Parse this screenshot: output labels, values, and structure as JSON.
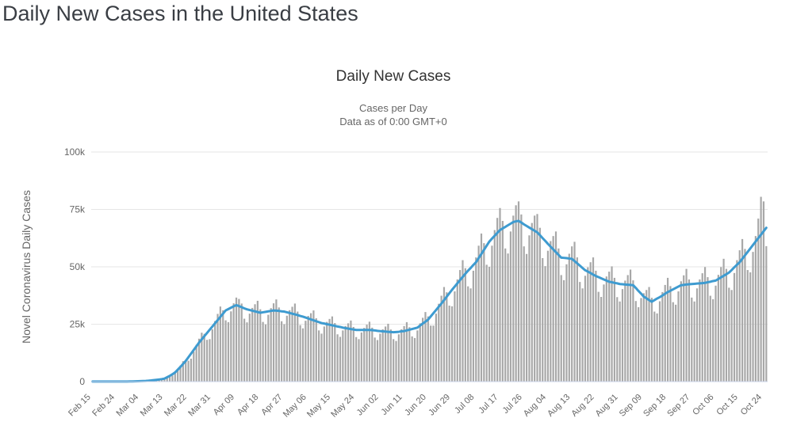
{
  "page": {
    "title": "Daily New Cases in the United States"
  },
  "chart": {
    "title": "Daily New Cases",
    "subtitle1": "Cases per Day",
    "subtitle2": "Data as of 0:00 GMT+0",
    "y_axis_title": "Novel Coronavirus Daily Cases",
    "colors": {
      "bar": "#a8a8a8",
      "line": "#3e9bd0",
      "grid": "#e6e6e6",
      "axis": "#ccd6eb",
      "tick_text": "#666666",
      "title_text": "#333333"
    }
  },
  "chart_data": {
    "type": "bar",
    "title": "Daily New Cases",
    "subtitle": [
      "Cases per Day",
      "Data as of 0:00 GMT+0"
    ],
    "ylabel": "Novel Coronavirus Daily Cases",
    "xlabel": "",
    "legend": "none",
    "grid": true,
    "units": "thousands of cases per day",
    "ylim_k": [
      0,
      100
    ],
    "y_ticks_k": [
      0,
      25,
      50,
      75,
      100
    ],
    "y_tick_labels": [
      "0",
      "25k",
      "50k",
      "75k",
      "100k"
    ],
    "x_tick_interval": 9,
    "n_points": 254,
    "x_tick_labels": [
      "Feb 15",
      "Feb 24",
      "Mar 04",
      "Mar 13",
      "Mar 22",
      "Mar 31",
      "Apr 09",
      "Apr 18",
      "Apr 27",
      "May 06",
      "May 15",
      "May 24",
      "Jun 02",
      "Jun 11",
      "Jun 20",
      "Jun 29",
      "Jul 08",
      "Jul 17",
      "Jul 26",
      "Aug 04",
      "Aug 13",
      "Aug 22",
      "Aug 31",
      "Sep 09",
      "Sep 18",
      "Sep 27",
      "Oct 06",
      "Oct 15",
      "Oct 24"
    ],
    "series": [
      {
        "name": "daily-new-cases-bars",
        "type": "bar",
        "values_k": [
          0,
          0,
          0,
          0,
          0,
          0,
          0,
          0.1,
          0,
          0,
          0,
          0,
          0.1,
          0.1,
          0.1,
          0.1,
          0.1,
          0.2,
          0.2,
          0.3,
          0.3,
          0.4,
          0.5,
          0.6,
          0.8,
          0.9,
          1.1,
          1.4,
          2.0,
          2.2,
          2.6,
          3.8,
          5.4,
          7.0,
          8.9,
          9.5,
          9.1,
          10.0,
          13.1,
          16.0,
          18.7,
          21.3,
          20.8,
          18.2,
          18.5,
          22.8,
          26.4,
          29.5,
          32.7,
          31.1,
          26.7,
          25.9,
          30.6,
          34.1,
          36.6,
          36.0,
          34.0,
          27.4,
          25.8,
          29.6,
          32.1,
          33.7,
          35.2,
          31.5,
          26.0,
          24.9,
          29.1,
          32.0,
          34.1,
          35.8,
          32.3,
          26.3,
          25.0,
          28.7,
          31.1,
          32.6,
          34.0,
          30.5,
          24.6,
          23.2,
          26.5,
          28.6,
          29.8,
          31.0,
          27.6,
          22.3,
          20.9,
          24.0,
          26.0,
          27.3,
          28.4,
          25.5,
          20.6,
          19.5,
          22.3,
          24.2,
          25.4,
          26.6,
          23.8,
          19.4,
          18.5,
          21.4,
          23.4,
          24.8,
          26.1,
          23.5,
          19.2,
          18.1,
          20.9,
          22.8,
          24.0,
          25.2,
          22.7,
          18.5,
          17.7,
          20.6,
          22.8,
          24.2,
          25.9,
          23.7,
          19.7,
          19.0,
          22.3,
          25.4,
          27.8,
          30.3,
          28.4,
          24.4,
          24.4,
          29.6,
          33.9,
          37.4,
          41.2,
          38.9,
          33.1,
          32.8,
          39.3,
          44.5,
          48.6,
          52.9,
          49.4,
          41.5,
          40.6,
          48.3,
          54.1,
          59.2,
          64.5,
          60.3,
          50.9,
          50.0,
          59.2,
          66.0,
          71.3,
          75.6,
          70.0,
          58.0,
          55.8,
          65.4,
          72.3,
          76.8,
          78.5,
          72.8,
          58.9,
          55.6,
          63.7,
          69.1,
          72.3,
          73.0,
          67.0,
          53.8,
          50.3,
          57.0,
          61.2,
          63.4,
          65.4,
          58.0,
          46.4,
          44.2,
          51.1,
          55.7,
          58.9,
          60.9,
          54.1,
          43.4,
          40.6,
          46.1,
          49.8,
          52.0,
          54.1,
          48.3,
          39.1,
          36.9,
          42.3,
          45.8,
          47.9,
          50.2,
          45.2,
          36.8,
          34.9,
          40.3,
          44.0,
          46.4,
          48.8,
          44.1,
          35.1,
          32.4,
          36.4,
          38.5,
          39.9,
          41.2,
          36.5,
          30.5,
          29.7,
          35.0,
          39.0,
          42.1,
          45.2,
          41.6,
          34.6,
          33.5,
          39.3,
          43.7,
          46.3,
          49.1,
          44.5,
          36.6,
          34.9,
          40.6,
          44.5,
          47.2,
          49.9,
          45.5,
          37.4,
          35.9,
          41.8,
          46.5,
          49.9,
          53.5,
          49.1,
          40.9,
          39.9,
          47.3,
          52.9,
          57.2,
          62.1,
          57.8,
          48.6,
          47.6,
          56.5,
          63.4,
          71.0,
          80.5,
          78.5,
          59.0
        ]
      },
      {
        "name": "smoothed-trend-line",
        "type": "line",
        "values_k": [
          0.03,
          0.03,
          0.03,
          0.03,
          0.03,
          0.03,
          0.03,
          0.03,
          0.03,
          0.03,
          0.03,
          0.04,
          0.05,
          0.06,
          0.07,
          0.1,
          0.12,
          0.15,
          0.2,
          0.25,
          0.3,
          0.4,
          0.5,
          0.63,
          0.77,
          0.93,
          1.1,
          1.3,
          1.9,
          2.5,
          3.2,
          4.0,
          5.2,
          6.4,
          7.7,
          9.0,
          10.6,
          12.2,
          13.8,
          15.4,
          17.0,
          18.4,
          19.8,
          21.2,
          22.6,
          24.0,
          25.4,
          26.8,
          28.2,
          29.6,
          31.0,
          31.6,
          32.2,
          32.8,
          33.3,
          32.9,
          32.4,
          31.9,
          31.5,
          31.2,
          30.9,
          30.6,
          30.3,
          30.0,
          30.2,
          30.4,
          30.6,
          30.8,
          31.0,
          30.9,
          30.8,
          30.6,
          30.5,
          30.2,
          29.9,
          29.6,
          29.3,
          29.0,
          28.6,
          28.3,
          27.9,
          27.5,
          27.1,
          26.7,
          26.3,
          25.9,
          25.5,
          25.3,
          25.0,
          24.8,
          24.5,
          24.3,
          24.0,
          23.8,
          23.5,
          23.3,
          23.1,
          22.9,
          22.7,
          22.5,
          22.5,
          22.5,
          22.5,
          22.5,
          22.5,
          22.4,
          22.3,
          22.1,
          22.0,
          21.9,
          21.8,
          21.7,
          21.6,
          21.5,
          21.6,
          21.7,
          21.9,
          22.0,
          22.3,
          22.6,
          22.9,
          23.2,
          23.5,
          24.4,
          25.3,
          26.1,
          27.0,
          28.4,
          29.8,
          31.2,
          32.6,
          34.0,
          35.5,
          37.0,
          38.5,
          40.0,
          41.4,
          42.8,
          44.2,
          45.6,
          47.0,
          48.3,
          49.5,
          50.8,
          52.0,
          53.8,
          55.6,
          57.4,
          59.2,
          61.0,
          62.3,
          63.5,
          64.8,
          66.0,
          66.7,
          67.4,
          68.1,
          68.8,
          69.5,
          69.8,
          70.0,
          69.3,
          68.5,
          67.8,
          67.1,
          66.4,
          65.7,
          65.0,
          63.8,
          62.5,
          61.3,
          60.0,
          58.8,
          57.6,
          56.4,
          55.2,
          54.0,
          53.9,
          53.8,
          53.6,
          53.5,
          52.5,
          51.5,
          50.5,
          49.5,
          48.5,
          47.9,
          47.3,
          46.6,
          46.0,
          45.5,
          45.0,
          44.5,
          44.0,
          43.5,
          43.3,
          43.0,
          42.8,
          42.5,
          42.4,
          42.3,
          42.2,
          42.1,
          42.0,
          40.8,
          39.5,
          38.3,
          37.0,
          36.3,
          35.5,
          34.8,
          35.5,
          36.2,
          36.8,
          37.5,
          38.3,
          39.0,
          39.6,
          40.2,
          40.8,
          41.4,
          42.0,
          42.1,
          42.3,
          42.4,
          42.5,
          42.6,
          42.7,
          42.8,
          42.9,
          43.0,
          43.3,
          43.5,
          43.8,
          44.0,
          44.7,
          45.4,
          46.1,
          46.8,
          47.5,
          48.6,
          49.8,
          50.9,
          52.0,
          53.5,
          55.0,
          56.5,
          58.0,
          59.5,
          61.0,
          62.5,
          64.0,
          65.5,
          67.0
        ]
      }
    ]
  }
}
